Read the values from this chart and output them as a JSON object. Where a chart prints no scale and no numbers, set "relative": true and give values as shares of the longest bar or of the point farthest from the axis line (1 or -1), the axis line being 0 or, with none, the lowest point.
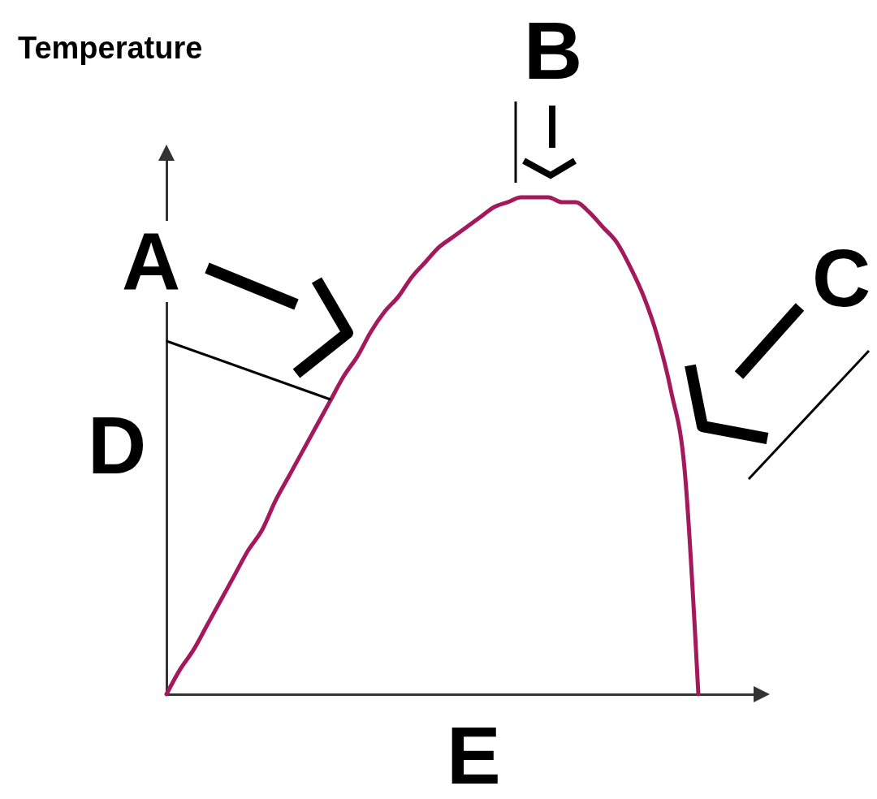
{
  "chart_data": {
    "type": "line",
    "ylabel": "Temperature",
    "relative": true,
    "color": "#a3195b",
    "categories": [
      null,
      null,
      null,
      null,
      null,
      null,
      null,
      null,
      null,
      null,
      null,
      null,
      null,
      null,
      null,
      null,
      null,
      null,
      null,
      null,
      null,
      null,
      null,
      null,
      null,
      null,
      null,
      null,
      null,
      null,
      null,
      null,
      null,
      null,
      null,
      null,
      null,
      null,
      null,
      null
    ],
    "values": [
      0,
      0.05,
      0.09,
      0.14,
      0.19,
      0.24,
      0.29,
      0.33,
      0.39,
      0.44,
      0.49,
      0.54,
      0.59,
      0.64,
      0.68,
      0.73,
      0.77,
      0.8,
      0.84,
      0.87,
      0.9,
      0.92,
      0.94,
      0.96,
      0.98,
      0.99,
      1,
      1,
      1,
      0.99,
      0.99,
      0.97,
      0.94,
      0.91,
      0.86,
      0.8,
      0.72,
      0.61,
      0.45,
      0
    ],
    "annotations": [
      "A",
      "B",
      "C",
      "D",
      "E"
    ]
  }
}
